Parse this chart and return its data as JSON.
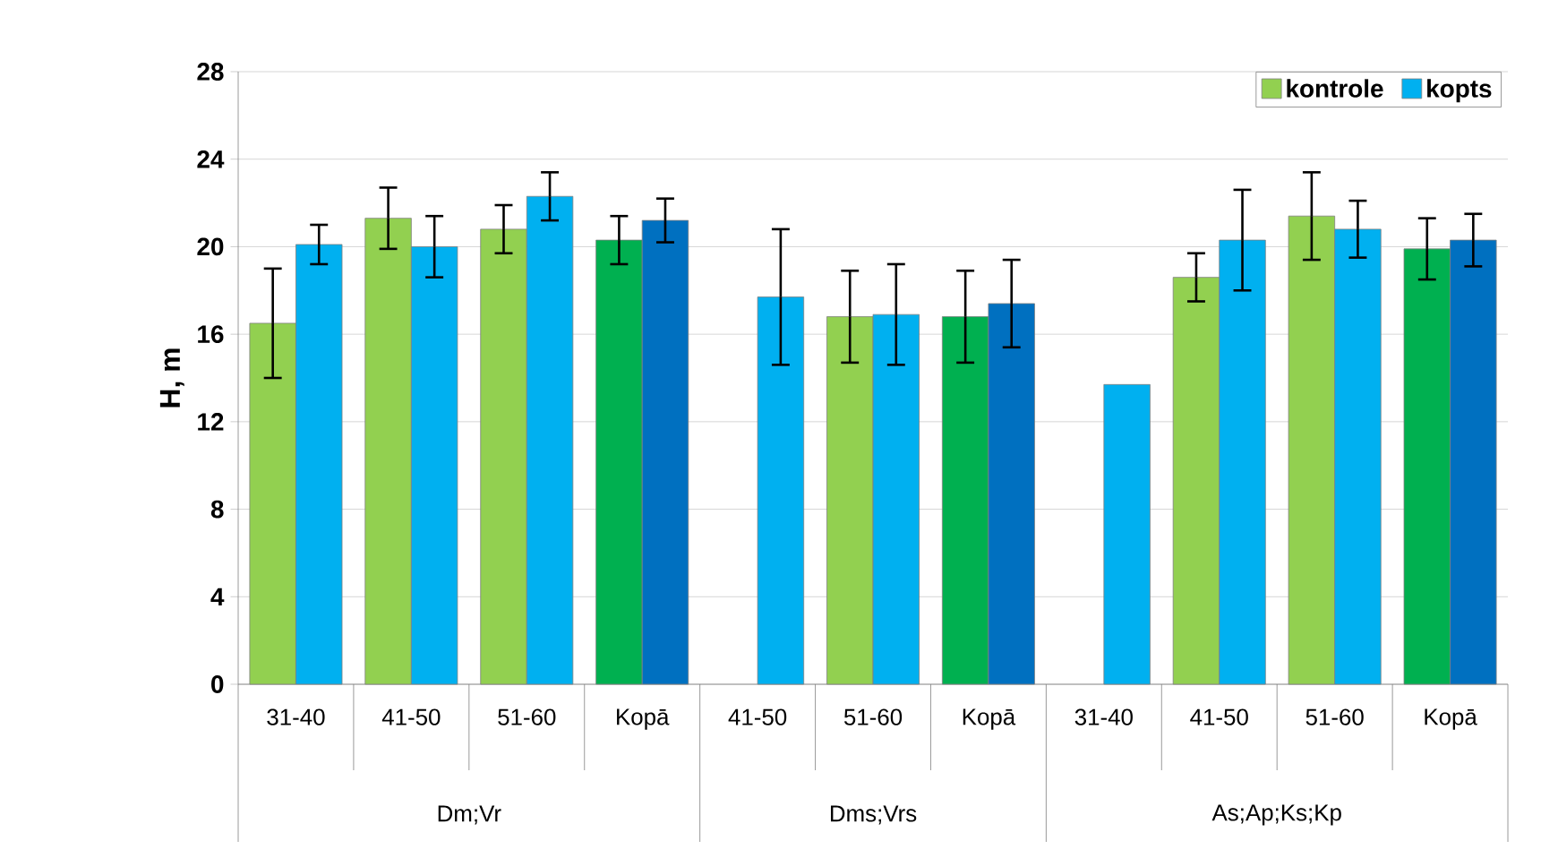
{
  "chart_data": {
    "type": "bar",
    "ylabel": "H, m",
    "categories": [
      "31-40",
      "41-50",
      "51-60",
      "Kopā",
      "41-50",
      "51-60",
      "Kopā",
      "31-40",
      "41-50",
      "51-60",
      "Kopā"
    ],
    "annotations": [
      "Dm;Vr",
      "Dms;Vrs",
      "As;Ap;Ks;Kp"
    ],
    "series": [
      {
        "name": "kontrole",
        "color": "#92d050",
        "colors": [
          "#92d050",
          "#92d050",
          "#92d050",
          "#00b050",
          null,
          "#92d050",
          "#00b050",
          null,
          "#92d050",
          "#92d050",
          "#00b050"
        ],
        "values": [
          16.5,
          21.3,
          20.8,
          20.3,
          null,
          16.8,
          16.8,
          null,
          18.6,
          21.4,
          19.9
        ],
        "errors": [
          2.5,
          1.4,
          1.1,
          1.1,
          null,
          2.1,
          2.1,
          null,
          1.1,
          2.0,
          1.4
        ]
      },
      {
        "name": "kopts",
        "color": "#00b0f0",
        "colors": [
          "#00b0f0",
          "#00b0f0",
          "#00b0f0",
          "#0070c0",
          "#00b0f0",
          "#00b0f0",
          "#0070c0",
          "#00b0f0",
          "#00b0f0",
          "#00b0f0",
          "#0070c0"
        ],
        "values": [
          20.1,
          20.0,
          22.3,
          21.2,
          17.7,
          16.9,
          17.4,
          13.7,
          20.3,
          20.8,
          20.3
        ],
        "errors": [
          0.9,
          1.4,
          1.1,
          1.0,
          3.1,
          2.3,
          2.0,
          null,
          2.3,
          1.3,
          1.2
        ]
      }
    ],
    "ylim": [
      0,
      28
    ],
    "yticks": [
      0,
      4,
      8,
      12,
      16,
      20,
      24,
      28
    ],
    "grid": "y",
    "legend": "top right"
  }
}
